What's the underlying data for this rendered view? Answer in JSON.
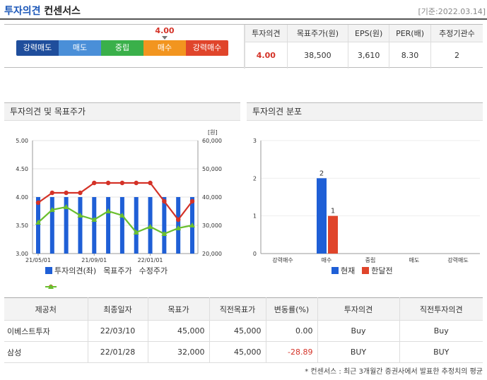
{
  "header": {
    "title_part1": "투자의견",
    "title_part2": "컨센서스",
    "date": "[기준:2022.03.14]"
  },
  "consensus": {
    "marker_value": "4.00",
    "marker_position": 4.0,
    "scale": [
      {
        "label": "강력매도",
        "color": "#1f4e9c"
      },
      {
        "label": "매도",
        "color": "#4a8fd8"
      },
      {
        "label": "중립",
        "color": "#3ab04a"
      },
      {
        "label": "매수",
        "color": "#f2951f"
      },
      {
        "label": "강력매수",
        "color": "#e0452b"
      }
    ],
    "headers": [
      "투자의견",
      "목표주가(원)",
      "EPS(원)",
      "PER(배)",
      "추정기관수"
    ],
    "values": [
      "4.00",
      "38,500",
      "3,610",
      "8.30",
      "2"
    ]
  },
  "panel_left": {
    "title": "투자의견 및 목표주가"
  },
  "panel_right": {
    "title": "투자의견 분포"
  },
  "chart_data": [
    {
      "type": "bar+line",
      "title": "투자의견 및 목표주가",
      "x_ticks": [
        "21/05/01",
        "21/09/01",
        "22/01/01"
      ],
      "y_left": {
        "ticks": [
          "5.00",
          "4.50",
          "4.00",
          "3.50",
          "3.00"
        ],
        "range": [
          3.0,
          5.0
        ]
      },
      "y_right": {
        "ticks": [
          "60,000",
          "50,000",
          "40,000",
          "30,000",
          "20,000"
        ],
        "range": [
          20000,
          60000
        ],
        "unit": "[원]"
      },
      "series": [
        {
          "name": "투자의견(좌)",
          "kind": "bar",
          "axis": "left",
          "color": "#1f5fd6",
          "values": [
            4.0,
            4.0,
            4.0,
            4.0,
            4.0,
            4.0,
            4.0,
            4.0,
            4.0,
            4.0,
            4.0,
            4.0
          ]
        },
        {
          "name": "목표주가",
          "kind": "line",
          "axis": "right",
          "color": "#d43227",
          "values": [
            38000,
            41500,
            41500,
            41500,
            45000,
            45000,
            45000,
            45000,
            45000,
            38500,
            32000,
            38500
          ]
        },
        {
          "name": "수정주가",
          "kind": "line",
          "axis": "right",
          "color": "#6abf2f",
          "values": [
            31000,
            35500,
            36500,
            33500,
            32000,
            35000,
            33500,
            27500,
            29500,
            27000,
            29000,
            30000
          ]
        }
      ]
    },
    {
      "type": "bar",
      "title": "투자의견 분포",
      "categories": [
        "강력매수",
        "매수",
        "중립",
        "매도",
        "강력매도"
      ],
      "y_ticks": [
        "3",
        "2",
        "1",
        "0"
      ],
      "ylim": [
        0,
        3
      ],
      "series": [
        {
          "name": "현재",
          "color": "#1f5fd6",
          "values": [
            0,
            2,
            0,
            0,
            0
          ]
        },
        {
          "name": "한달전",
          "color": "#e0452b",
          "values": [
            0,
            1,
            0,
            0,
            0
          ]
        }
      ]
    }
  ],
  "broker_table": {
    "headers": [
      "제공처",
      "최종일자",
      "목표가",
      "직전목표가",
      "변동률(%)",
      "투자의견",
      "직전투자의견"
    ],
    "rows": [
      [
        "이베스트투자",
        "22/03/10",
        "45,000",
        "45,000",
        "0.00",
        "Buy",
        "Buy"
      ],
      [
        "삼성",
        "22/01/28",
        "32,000",
        "45,000",
        "-28.89",
        "BUY",
        "BUY"
      ]
    ]
  },
  "footnote": "* 컨센서스 : 최근 3개월간 증권사에서 발표한 추정치의 평균"
}
